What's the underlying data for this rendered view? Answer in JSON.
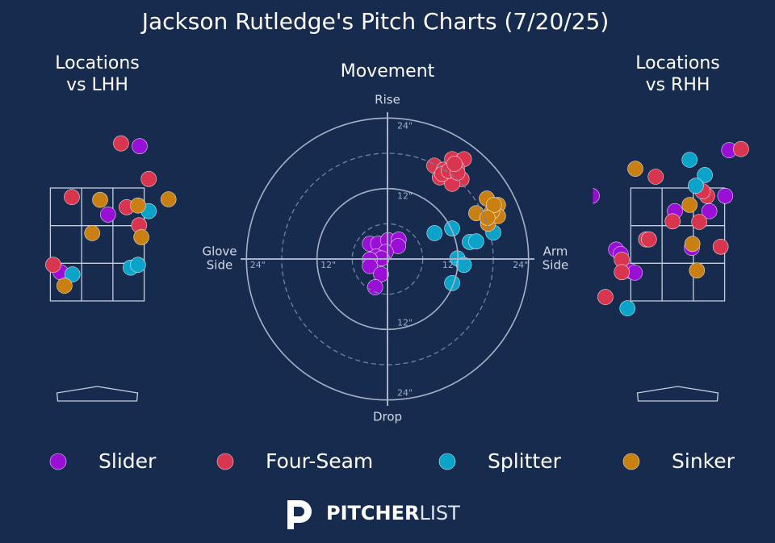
{
  "title": "Jackson Rutledge's Pitch Charts (7/20/25)",
  "logo": [
    "PITCHER",
    "LIST"
  ],
  "chart_data": [
    {
      "type": "scatter",
      "title": [
        "Locations",
        "vs LHH"
      ],
      "strike_zone": true,
      "xlim": [
        -1.5,
        1.5
      ],
      "ylim": [
        0,
        5
      ],
      "series": [
        {
          "name": "Slider",
          "color": "#9a0fd6",
          "x": [
            0.75,
            0.19,
            -0.65
          ],
          "values": [
            4.24,
            3.03,
            2.01
          ]
        },
        {
          "name": "Four-Seam",
          "color": "#d9354f",
          "x": [
            0.42,
            0.91,
            -0.45,
            0.52,
            0.74,
            -0.78
          ],
          "values": [
            4.29,
            3.66,
            3.34,
            3.16,
            2.84,
            2.14
          ]
        },
        {
          "name": "Splitter",
          "color": "#0aa3c9",
          "x": [
            0.91,
            -0.44,
            0.59,
            0.72
          ],
          "values": [
            3.09,
            1.97,
            2.09,
            2.14
          ]
        },
        {
          "name": "Sinker",
          "color": "#c98010",
          "x": [
            0.05,
            1.26,
            0.72,
            -0.09,
            0.78,
            -0.58
          ],
          "values": [
            3.29,
            3.3,
            3.19,
            2.7,
            2.63,
            1.77
          ]
        }
      ]
    },
    {
      "type": "scatter",
      "title": [
        "Movement"
      ],
      "x_label": [
        "Glove",
        "Side"
      ],
      "x2_label": [
        "Arm",
        "Side"
      ],
      "y_label": "Rise",
      "y2_label": "Drop",
      "xlim": [
        -25,
        25
      ],
      "ylim": [
        -25,
        25
      ],
      "rings": [
        {
          "value": 12,
          "label": "12\""
        },
        {
          "value": 24,
          "label": "24\""
        }
      ],
      "minor_rings": [
        6,
        18
      ],
      "series": [
        {
          "name": "Slider",
          "color": "#9a0fd6",
          "x": [
            -3.0,
            -1.6,
            0.1,
            1.9,
            1.8,
            -0.3,
            -1.9,
            -1.0,
            -3.0,
            -3.0,
            -1.1,
            -2.1
          ],
          "values": [
            2.6,
            2.6,
            3.2,
            3.3,
            2.2,
            1.2,
            0.4,
            0.1,
            -0.1,
            -1.2,
            -2.6,
            -4.8
          ]
        },
        {
          "name": "Four-Seam",
          "color": "#d9354f",
          "x": [
            7.96,
            8.9,
            9.6,
            11.0,
            13.0,
            11.8,
            12.6,
            11.0,
            9.3,
            10.4,
            11.9,
            11.4
          ],
          "values": [
            15.9,
            13.9,
            15.2,
            17.0,
            17.0,
            15.5,
            13.6,
            12.8,
            14.5,
            15.0,
            14.7,
            16.2
          ]
        },
        {
          "name": "Splitter",
          "color": "#0aa3c9",
          "x": [
            8.0,
            11.0,
            14.0,
            15.1,
            18.0,
            11.9,
            13.0,
            11.0
          ],
          "values": [
            4.4,
            5.2,
            2.9,
            3.0,
            4.5,
            0.1,
            -1.0,
            -4.1
          ]
        },
        {
          "name": "Sinker",
          "color": "#c98010",
          "x": [
            16.9,
            18.8,
            15.1,
            17.1,
            18.8,
            17.8,
            18.1,
            17.0
          ],
          "values": [
            10.3,
            9.2,
            7.8,
            6.0,
            7.3,
            8.1,
            9.2,
            7.0
          ]
        }
      ]
    },
    {
      "type": "scatter",
      "title": [
        "Locations",
        "vs RHH"
      ],
      "strike_zone": true,
      "xlim": [
        -1.5,
        1.5
      ],
      "ylim": [
        0,
        5
      ],
      "series": [
        {
          "name": "Slider",
          "color": "#9a0fd6",
          "x": [
            0.91,
            -1.52,
            0.84,
            -0.05,
            0.56,
            0.25,
            -1.09,
            -1.01,
            -0.84,
            -0.76
          ],
          "values": [
            4.17,
            3.36,
            3.36,
            3.09,
            3.09,
            2.44,
            2.41,
            2.33,
            2.03,
            2.0
          ]
        },
        {
          "name": "Four-Seam",
          "color": "#d9354f",
          "x": [
            1.12,
            -0.39,
            0.52,
            0.44,
            0.38,
            -0.09,
            -0.56,
            -0.51,
            0.76,
            -0.99,
            -0.99,
            -1.28
          ],
          "values": [
            4.19,
            3.7,
            3.36,
            3.44,
            2.9,
            2.91,
            2.59,
            2.59,
            2.46,
            2.23,
            2.01,
            1.57
          ]
        },
        {
          "name": "Splitter",
          "color": "#0aa3c9",
          "x": [
            0.21,
            0.48,
            0.32,
            -0.89
          ],
          "values": [
            4.0,
            3.73,
            3.54,
            1.37
          ]
        },
        {
          "name": "Sinker",
          "color": "#c98010",
          "x": [
            -0.75,
            0.21,
            0.26,
            0.34
          ],
          "values": [
            3.84,
            3.2,
            2.51,
            2.04
          ]
        }
      ]
    }
  ]
}
